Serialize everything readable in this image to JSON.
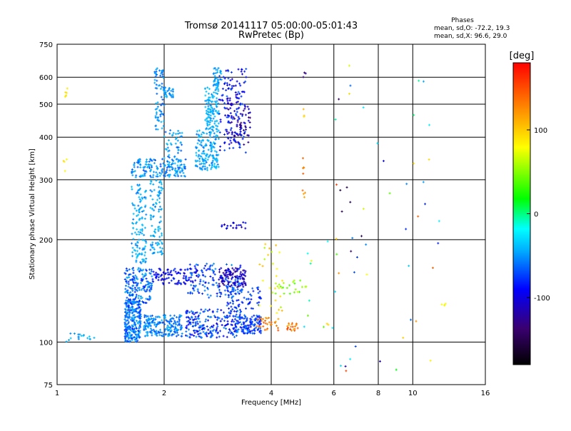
{
  "chart_data": {
    "type": "scatter",
    "title": "Tromsø 20141117 05:00:00-05:01:43",
    "subtitle": "RwPretec (Bp)",
    "xlabel": "Frequency [MHz]",
    "ylabel": "Stationary phase Virtual Height [km]",
    "x_scale": "log",
    "y_scale": "log",
    "xlim": [
      1,
      16
    ],
    "ylim": [
      75,
      750
    ],
    "x_ticks": [
      {
        "value": 1,
        "label": "1"
      },
      {
        "value": 2,
        "label": "2"
      },
      {
        "value": 4,
        "label": "4"
      },
      {
        "value": 6,
        "label": "6"
      },
      {
        "value": 8,
        "label": "8"
      },
      {
        "value": 10,
        "label": "10"
      },
      {
        "value": 16,
        "label": "16"
      }
    ],
    "y_ticks": [
      {
        "value": 75,
        "label": "75"
      },
      {
        "value": 100,
        "label": "100"
      },
      {
        "value": 200,
        "label": "200"
      },
      {
        "value": 300,
        "label": "300"
      },
      {
        "value": 400,
        "label": "400"
      },
      {
        "value": 500,
        "label": "500"
      },
      {
        "value": 600,
        "label": "600"
      },
      {
        "value": 750,
        "label": "750"
      }
    ],
    "grid": true,
    "stats": {
      "heading": "Phases",
      "line_o": "mean, sd,O: -72.2, 19.3",
      "line_x": "mean, sd,X:  96.6, 29.0"
    },
    "colorbar": {
      "label": "[deg]",
      "range": [
        -180,
        180
      ],
      "ticks": [
        {
          "value": 100,
          "label": "100"
        },
        {
          "value": 0,
          "label": "0"
        },
        {
          "value": -100,
          "label": "-100"
        }
      ]
    },
    "clusters": [
      {
        "f": [
          1.55,
          1.72
        ],
        "h": [
          100,
          132
        ],
        "n": 260,
        "phase": [
          -95,
          -55
        ]
      },
      {
        "f": [
          1.75,
          2.25
        ],
        "h": [
          104,
          120
        ],
        "n": 200,
        "phase": [
          -85,
          -55
        ]
      },
      {
        "f": [
          2.3,
          3.3
        ],
        "h": [
          103,
          125
        ],
        "n": 240,
        "phase": [
          -110,
          -65
        ]
      },
      {
        "f": [
          3.3,
          3.75
        ],
        "h": [
          106,
          120
        ],
        "n": 110,
        "phase": [
          -105,
          -70
        ]
      },
      {
        "f": [
          1.55,
          1.85
        ],
        "h": [
          130,
          165
        ],
        "n": 180,
        "phase": [
          -95,
          -55
        ]
      },
      {
        "f": [
          1.85,
          2.5
        ],
        "h": [
          148,
          165
        ],
        "n": 100,
        "phase": [
          -115,
          -85
        ]
      },
      {
        "f": [
          2.3,
          3.3
        ],
        "h": [
          135,
          170
        ],
        "n": 140,
        "phase": [
          -100,
          -65
        ]
      },
      {
        "f": [
          2.85,
          3.4
        ],
        "h": [
          145,
          165
        ],
        "n": 100,
        "phase": [
          -135,
          -105
        ]
      },
      {
        "f": [
          3.0,
          3.75
        ],
        "h": [
          125,
          145
        ],
        "n": 70,
        "phase": [
          -100,
          -75
        ]
      },
      {
        "f": [
          1.62,
          1.78
        ],
        "h": [
          170,
          290
        ],
        "n": 120,
        "phase": [
          -75,
          -45
        ]
      },
      {
        "f": [
          1.83,
          1.98
        ],
        "h": [
          180,
          300
        ],
        "n": 100,
        "phase": [
          -75,
          -45
        ]
      },
      {
        "f": [
          1.62,
          2.3
        ],
        "h": [
          305,
          345
        ],
        "n": 160,
        "phase": [
          -85,
          -50
        ]
      },
      {
        "f": [
          2.0,
          2.25
        ],
        "h": [
          325,
          420
        ],
        "n": 60,
        "phase": [
          -80,
          -50
        ]
      },
      {
        "f": [
          1.88,
          2.0
        ],
        "h": [
          420,
          640
        ],
        "n": 70,
        "phase": [
          -80,
          -55
        ]
      },
      {
        "f": [
          2.0,
          2.12
        ],
        "h": [
          520,
          560
        ],
        "n": 30,
        "phase": [
          -75,
          -55
        ]
      },
      {
        "f": [
          2.45,
          2.85
        ],
        "h": [
          320,
          420
        ],
        "n": 160,
        "phase": [
          -75,
          -45
        ]
      },
      {
        "f": [
          2.6,
          2.85
        ],
        "h": [
          420,
          560
        ],
        "n": 120,
        "phase": [
          -70,
          -45
        ]
      },
      {
        "f": [
          2.75,
          2.9
        ],
        "h": [
          560,
          640
        ],
        "n": 40,
        "phase": [
          -75,
          -50
        ]
      },
      {
        "f": [
          2.85,
          3.4
        ],
        "h": [
          360,
          640
        ],
        "n": 160,
        "phase": [
          -120,
          -80
        ]
      },
      {
        "f": [
          3.0,
          3.5
        ],
        "h": [
          380,
          520
        ],
        "n": 50,
        "phase": [
          -140,
          -110
        ]
      },
      {
        "f": [
          2.9,
          3.4
        ],
        "h": [
          215,
          225
        ],
        "n": 20,
        "phase": [
          -120,
          -95
        ]
      },
      {
        "f": [
          1.05,
          1.3
        ],
        "h": [
          100,
          106
        ],
        "n": 18,
        "phase": [
          -70,
          -45
        ]
      },
      {
        "f": [
          3.6,
          4.2
        ],
        "h": [
          108,
          118
        ],
        "n": 30,
        "phase": [
          110,
          150
        ]
      },
      {
        "f": [
          4.4,
          4.75
        ],
        "h": [
          108,
          114
        ],
        "n": 20,
        "phase": [
          110,
          160
        ]
      },
      {
        "f": [
          4.0,
          5.0
        ],
        "h": [
          138,
          152
        ],
        "n": 24,
        "phase": [
          30,
          70
        ]
      },
      {
        "f": [
          3.7,
          4.3
        ],
        "h": [
          120,
          195
        ],
        "n": 25,
        "phase": [
          60,
          110
        ]
      },
      {
        "f": [
          4.8,
          6.2
        ],
        "h": [
          110,
          200
        ],
        "n": 14,
        "phase": [
          -40,
          100
        ]
      },
      {
        "f": [
          4.9,
          5.0
        ],
        "h": [
          265,
          285
        ],
        "n": 4,
        "phase": [
          110,
          150
        ]
      },
      {
        "f": [
          4.9,
          5.0
        ],
        "h": [
          310,
          350
        ],
        "n": 5,
        "phase": [
          110,
          150
        ]
      },
      {
        "f": [
          4.9,
          5.0
        ],
        "h": [
          450,
          490
        ],
        "n": 3,
        "phase": [
          90,
          110
        ]
      },
      {
        "f": [
          4.9,
          5.0
        ],
        "h": [
          600,
          620
        ],
        "n": 3,
        "phase": [
          -140,
          -120
        ]
      },
      {
        "f": [
          1.04,
          1.07
        ],
        "h": [
          510,
          560
        ],
        "n": 6,
        "phase": [
          80,
          95
        ]
      },
      {
        "f": [
          1.04,
          1.07
        ],
        "h": [
          315,
          345
        ],
        "n": 4,
        "phase": [
          80,
          95
        ]
      },
      {
        "f": [
          6.0,
          12.0
        ],
        "h": [
          80,
          660
        ],
        "n": 50,
        "phase": [
          -160,
          160
        ]
      },
      {
        "f": [
          12.0,
          12.5
        ],
        "h": [
          128,
          132
        ],
        "n": 4,
        "phase": [
          70,
          90
        ]
      }
    ]
  }
}
